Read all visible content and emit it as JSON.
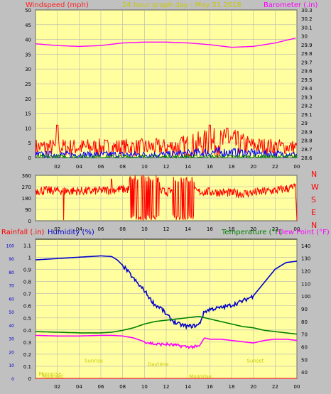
{
  "colors": {
    "background": "#c0c0c0",
    "plot": "#ffffa0",
    "grid": "#b5b5b5",
    "axis_text": "#000000",
    "windspeed": "#ff2020",
    "gust": "#ff0000",
    "wind_avg": "#0000ff",
    "wind_low": "#008000",
    "barometer": "#ff00ff",
    "direction": "#ff0000",
    "rain_label": "#ff0000",
    "humidity": "#0000cc",
    "temperature": "#008000",
    "dewpoint": "#ff00ff",
    "events": "#c8c800"
  },
  "chart_data": [
    {
      "type": "line",
      "title": "24 hour graph day : May 31 2018",
      "ylabel": "Windspeed (mph)",
      "y2label": "Barometer (.in)",
      "ylim": [
        0,
        50
      ],
      "y2lim": [
        28.6,
        30.3
      ],
      "xlim": [
        0,
        24
      ],
      "grid": true,
      "y_ticks": [
        "0",
        "5",
        "10",
        "15",
        "20",
        "25",
        "30",
        "35",
        "40",
        "45",
        "50"
      ],
      "y2_ticks": [
        "28.6",
        "28.7",
        "28.8",
        "28.9",
        "29",
        "29.1",
        "29.2",
        "29.3",
        "29.4",
        "29.5",
        "29.6",
        "29.7",
        "29.8",
        "29.9",
        "30",
        "30.1",
        "30.2",
        "30.3"
      ],
      "x_ticks": [
        "02",
        "04",
        "06",
        "08",
        "10",
        "12",
        "14",
        "16",
        "18",
        "20",
        "22",
        "00"
      ],
      "series": [
        {
          "name": "",
          "axis": "y2",
          "x": [
            0,
            2,
            4,
            6,
            8,
            10,
            12,
            14,
            16,
            18,
            20,
            22,
            24
          ],
          "values": [
            29.91,
            29.89,
            29.88,
            29.89,
            29.92,
            29.93,
            29.93,
            29.92,
            29.9,
            29.87,
            29.88,
            29.92,
            29.98
          ]
        },
        {
          "name": "",
          "axis": "y",
          "kind": "noise",
          "base": [
            [
              0,
              3.5
            ],
            [
              6,
              3.5
            ],
            [
              12,
              3.5
            ],
            [
              14,
              4
            ],
            [
              16,
              5
            ],
            [
              18,
              5
            ],
            [
              20,
              4
            ],
            [
              24,
              3.5
            ]
          ],
          "amp": [
            [
              0,
              3
            ],
            [
              6,
              3
            ],
            [
              12,
              3
            ],
            [
              16,
              5
            ],
            [
              18,
              5
            ],
            [
              20,
              3
            ],
            [
              24,
              2.5
            ]
          ],
          "peaks": [
            [
              2,
              11
            ],
            [
              16,
              11
            ],
            [
              17.6,
              10
            ]
          ]
        },
        {
          "name": "",
          "axis": "y",
          "kind": "noise",
          "base": [
            [
              0,
              1
            ],
            [
              12,
              1
            ],
            [
              16,
              1.8
            ],
            [
              18,
              1.8
            ],
            [
              24,
              1
            ]
          ],
          "amp": [
            [
              0,
              1.2
            ],
            [
              12,
              1.2
            ],
            [
              16,
              1.8
            ],
            [
              24,
              1
            ]
          ],
          "peaks": []
        },
        {
          "name": "",
          "axis": "y",
          "kind": "noise",
          "base": [
            [
              0,
              0.2
            ],
            [
              24,
              0.2
            ]
          ],
          "amp": [
            [
              0,
              0.8
            ],
            [
              24,
              0.8
            ]
          ],
          "peaks": []
        }
      ]
    },
    {
      "type": "scatter",
      "ylabel_letters": [
        "N",
        "W",
        "S",
        "E",
        "N"
      ],
      "ylim": [
        0,
        360
      ],
      "xlim": [
        0,
        24
      ],
      "grid": true,
      "y_ticks": [
        "0",
        "90",
        "180",
        "270",
        "360"
      ],
      "x_ticks": [
        "02",
        "04",
        "06",
        "08",
        "10",
        "12",
        "14",
        "16",
        "18",
        "20",
        "22",
        "00"
      ],
      "series": [
        {
          "name": "",
          "kind": "direction",
          "base": [
            [
              0,
              240
            ],
            [
              5,
              235
            ],
            [
              8,
              250
            ],
            [
              10,
              240
            ],
            [
              12,
              230
            ],
            [
              16,
              230
            ],
            [
              19,
              215
            ],
            [
              22,
              240
            ],
            [
              23.8,
              265
            ]
          ],
          "amp": 35,
          "chaotic": [
            [
              8.6,
              11.4
            ],
            [
              12.6,
              14.6
            ]
          ]
        }
      ]
    },
    {
      "type": "line",
      "ylabel_left": "Rainfall (.in)",
      "ylabel_left2": "Humidity (%)",
      "ylabel_right": "Temperature (°F)",
      "ylabel_right2": "Dew Point (°F)",
      "y_ticks": [
        "0",
        "0.1",
        "0.2",
        "0.3",
        "0.4",
        "0.5",
        "0.6",
        "0.7",
        "0.8",
        "0.9",
        "1",
        "1.1"
      ],
      "y_ticks_outer": [
        "0",
        "10",
        "20",
        "30",
        "40",
        "50",
        "60",
        "70",
        "80",
        "90",
        "100"
      ],
      "y2_ticks": [
        "40",
        "50",
        "60",
        "70",
        "80",
        "90",
        "100",
        "110",
        "120",
        "130",
        "140"
      ],
      "ylim_rain": [
        0,
        1.15
      ],
      "ylim_humidity": [
        0,
        104.5
      ],
      "y2lim": [
        35,
        145
      ],
      "xlim": [
        0,
        24
      ],
      "grid": true,
      "x_ticks": [
        "02",
        "04",
        "06",
        "08",
        "10",
        "12",
        "14",
        "16",
        "18",
        "20",
        "22",
        "00"
      ],
      "events": [
        {
          "label": "Moonrise",
          "x": 0.3,
          "y": 0.04
        },
        {
          "label": "Moonset",
          "x": 0.6,
          "y": 0.02
        },
        {
          "label": "Sunrise",
          "x": 4.5,
          "y": 0.15
        },
        {
          "label": "Daytime",
          "x": 10.3,
          "y": 0.12
        },
        {
          "label": "Moonrise",
          "x": 14.1,
          "y": 0.02
        },
        {
          "label": "Sunset",
          "x": 19.4,
          "y": 0.15
        }
      ],
      "series": [
        {
          "name": "",
          "axis": "humidity",
          "x": [
            0,
            1,
            2,
            4,
            6,
            7,
            7.5,
            8,
            8.5,
            9,
            9.5,
            10,
            10.5,
            11,
            11.5,
            12,
            12.5,
            13,
            13.5,
            14,
            14.5,
            15,
            15.5,
            16,
            17,
            18,
            19,
            20,
            21,
            22,
            23,
            24
          ],
          "values": [
            89,
            89.5,
            90,
            91,
            92,
            91.5,
            89,
            85,
            80,
            75,
            70,
            66,
            60,
            55,
            53,
            48,
            44,
            41,
            40,
            39,
            39.5,
            40,
            50,
            52,
            53,
            55,
            58,
            62,
            72,
            82,
            87,
            88
          ]
        },
        {
          "name": "",
          "axis": "temp",
          "x": [
            0,
            2,
            4,
            6,
            7,
            8,
            9,
            10,
            11,
            12,
            13,
            14,
            15,
            16,
            17,
            18,
            19,
            20,
            21,
            22,
            23,
            24
          ],
          "values": [
            72,
            71.5,
            71,
            71,
            71.5,
            73,
            75,
            78,
            80,
            81,
            82,
            83,
            84,
            82,
            80,
            78,
            76,
            75,
            73,
            72,
            71,
            70
          ]
        },
        {
          "name": "",
          "axis": "temp",
          "x": [
            0,
            2,
            4,
            6,
            7,
            8,
            9,
            10,
            11,
            12,
            13,
            14,
            15,
            15.5,
            16,
            17,
            18,
            19,
            20,
            21,
            22,
            23,
            24
          ],
          "values": [
            69,
            68.5,
            68.5,
            69,
            69,
            68.5,
            67,
            64,
            62,
            62,
            61,
            60,
            60,
            67,
            66,
            66,
            65,
            64,
            63,
            65,
            66,
            66,
            65
          ]
        },
        {
          "name": "",
          "axis": "rain",
          "x": [
            0,
            24
          ],
          "values": [
            0,
            0
          ]
        }
      ]
    }
  ]
}
